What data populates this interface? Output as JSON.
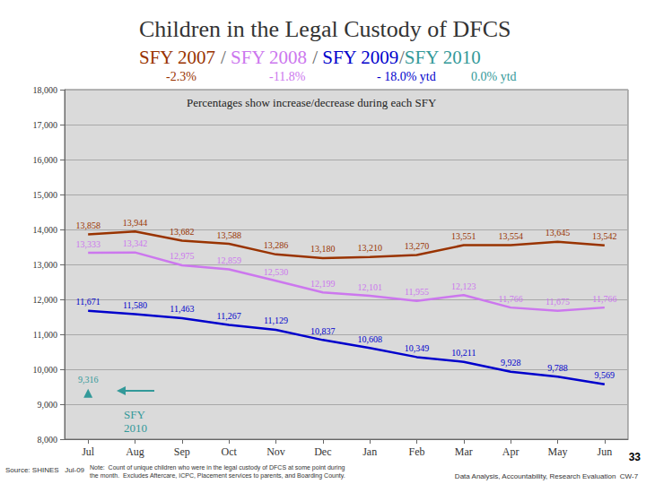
{
  "chart_data": {
    "type": "line",
    "title": "Children in the Legal Custody of DFCS",
    "subtitle": "SFY 2007 / SFY 2008 / SFY 2009/SFY 2010",
    "plot_note": "Percentages show increase/decrease during each SFY",
    "annotation": "SFY 2010",
    "source": "Source: SHINES   Jul-09",
    "footnote": [
      "Note:  Count of unique children who were in the legal custody of DFCS at some point during",
      "the month.  Excludes Aftercare, ICPC, Placement services to parents, and Boarding County."
    ],
    "credit": "Data Analysis, Accountability, Research Evaluation  CW-7",
    "page": "33",
    "categories": [
      "Jul",
      "Aug",
      "Sep",
      "Oct",
      "Nov",
      "Dec",
      "Jan",
      "Feb",
      "Mar",
      "Apr",
      "May",
      "Jun"
    ],
    "series": [
      {
        "name": "SFY 2007",
        "color": "#993300",
        "change_label": "-2.3%",
        "marker": "none",
        "values": [
          13858,
          13944,
          13682,
          13588,
          13286,
          13180,
          13210,
          13270,
          13551,
          13554,
          13645,
          13542
        ],
        "value_labels": [
          "13,858",
          "13,944",
          "13,682",
          "13,588",
          "13,286",
          "13,180",
          "13,210",
          "13,270",
          "13,551",
          "13,554",
          "13,645",
          "13,542"
        ]
      },
      {
        "name": "SFY 2008",
        "color": "#cc77ee",
        "change_label": "-11.8%",
        "marker": "none",
        "values": [
          13333,
          13342,
          12975,
          12859,
          12530,
          12199,
          12101,
          11955,
          12123,
          11766,
          11675,
          11766
        ],
        "value_labels": [
          "13,333",
          "13,342",
          "12,975",
          "12,859",
          "12,530",
          "12,199",
          "12,101",
          "11,955",
          "12,123",
          "11,766",
          "11,675",
          "11,766"
        ]
      },
      {
        "name": "SFY 2009",
        "color": "#0000cc",
        "change_label": "- 18.0% ytd",
        "marker": "none",
        "values": [
          11671,
          11580,
          11463,
          11267,
          11129,
          10837,
          10608,
          10349,
          10211,
          9928,
          9788,
          9569
        ],
        "value_labels": [
          "11,671",
          "11,580",
          "11,463",
          "11,267",
          "11,129",
          "10,837",
          "10,608",
          "10,349",
          "10,211",
          "9,928",
          "9,788",
          "9,569"
        ]
      },
      {
        "name": "SFY 2010",
        "color": "#339999",
        "change_label": "0.0% ytd",
        "marker": "triangle",
        "values": [
          9316,
          null,
          null,
          null,
          null,
          null,
          null,
          null,
          null,
          null,
          null,
          null
        ],
        "value_labels": [
          "9,316",
          null,
          null,
          null,
          null,
          null,
          null,
          null,
          null,
          null,
          null,
          null
        ]
      }
    ],
    "ylim": [
      8000,
      18000
    ],
    "yticks": [
      {
        "value": 8000,
        "label": "8,000"
      },
      {
        "value": 9000,
        "label": "9,000"
      },
      {
        "value": 10000,
        "label": "10,000"
      },
      {
        "value": 11000,
        "label": "11,000"
      },
      {
        "value": 12000,
        "label": "12,000"
      },
      {
        "value": 13000,
        "label": "13,000"
      },
      {
        "value": 14000,
        "label": "14,000"
      },
      {
        "value": 15000,
        "label": "15,000"
      },
      {
        "value": 16000,
        "label": "16,000"
      },
      {
        "value": 17000,
        "label": "17,000"
      },
      {
        "value": 18000,
        "label": "18,000"
      }
    ],
    "grid": true,
    "data_labels": true
  }
}
